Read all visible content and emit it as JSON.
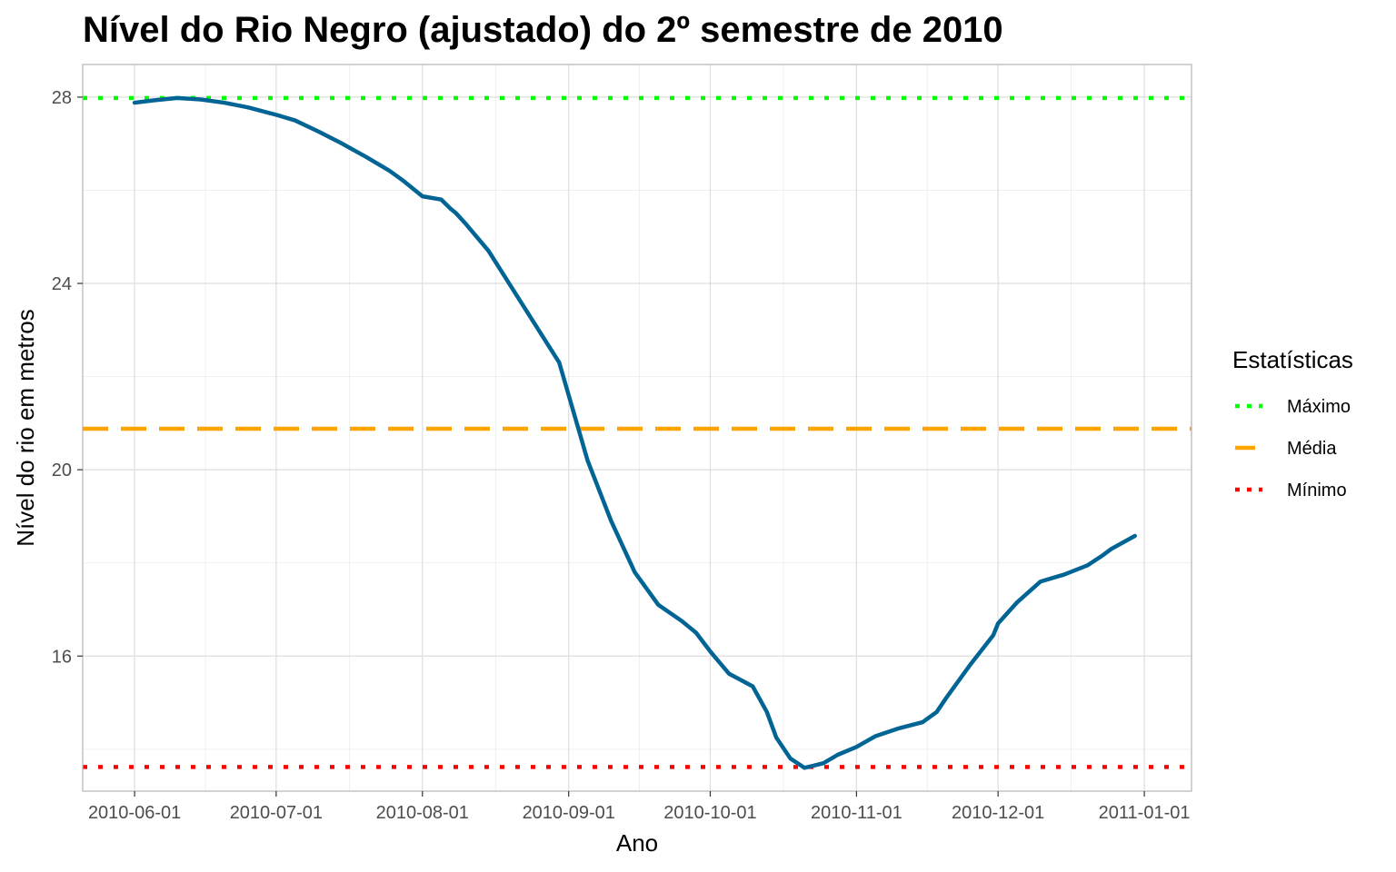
{
  "chart_data": {
    "type": "line",
    "title": "Nível do Rio Negro (ajustado) do 2º semestre de 2010",
    "xlabel": "Ano",
    "ylabel": "Nível do rio em metros",
    "x_tick_labels": [
      "2010-06-01",
      "2010-07-01",
      "2010-08-01",
      "2010-09-01",
      "2010-10-01",
      "2010-11-01",
      "2010-12-01",
      "2011-01-01"
    ],
    "y_ticks": [
      16,
      20,
      24,
      28
    ],
    "xlim": [
      "2010-05-21",
      "2011-01-11"
    ],
    "ylim": [
      13.1,
      28.7
    ],
    "grid": true,
    "series": [
      {
        "color": "#006494",
        "x": [
          "2010-06-01",
          "2010-06-05",
          "2010-06-10",
          "2010-06-15",
          "2010-06-20",
          "2010-06-25",
          "2010-07-01",
          "2010-07-05",
          "2010-07-10",
          "2010-07-15",
          "2010-07-20",
          "2010-07-25",
          "2010-07-28",
          "2010-08-01",
          "2010-08-05",
          "2010-08-07",
          "2010-08-08",
          "2010-08-10",
          "2010-08-15",
          "2010-08-20",
          "2010-08-25",
          "2010-08-30",
          "2010-09-01",
          "2010-09-05",
          "2010-09-10",
          "2010-09-15",
          "2010-09-20",
          "2010-09-25",
          "2010-09-28",
          "2010-10-01",
          "2010-10-05",
          "2010-10-10",
          "2010-10-13",
          "2010-10-15",
          "2010-10-18",
          "2010-10-21",
          "2010-10-23",
          "2010-10-25",
          "2010-10-28",
          "2010-11-01",
          "2010-11-05",
          "2010-11-10",
          "2010-11-15",
          "2010-11-18",
          "2010-11-20",
          "2010-11-25",
          "2010-11-30",
          "2010-12-01",
          "2010-12-05",
          "2010-12-10",
          "2010-12-15",
          "2010-12-20",
          "2010-12-23",
          "2010-12-25",
          "2010-12-30"
        ],
        "y": [
          27.88,
          27.93,
          27.98,
          27.95,
          27.88,
          27.78,
          27.62,
          27.5,
          27.26,
          27.0,
          26.72,
          26.42,
          26.2,
          25.87,
          25.8,
          25.6,
          25.52,
          25.3,
          24.7,
          23.9,
          23.1,
          22.3,
          21.6,
          20.2,
          18.9,
          17.8,
          17.1,
          16.75,
          16.5,
          16.1,
          15.62,
          15.35,
          14.8,
          14.25,
          13.8,
          13.6,
          13.65,
          13.7,
          13.88,
          14.05,
          14.28,
          14.45,
          14.58,
          14.8,
          15.1,
          15.8,
          16.45,
          16.7,
          17.15,
          17.6,
          17.75,
          17.95,
          18.15,
          18.3,
          18.58
        ]
      }
    ],
    "reference_lines": [
      {
        "name": "Máximo",
        "value": 27.98,
        "color": "#00ff00",
        "style": "dotted"
      },
      {
        "name": "Média",
        "value": 20.88,
        "color": "#ffa500",
        "style": "dashed"
      },
      {
        "name": "Mínimo",
        "value": 13.62,
        "color": "#ff0000",
        "style": "dotted"
      }
    ],
    "legend": {
      "title": "Estatísticas",
      "placement": "right",
      "entries": [
        "Máximo",
        "Média",
        "Mínimo"
      ]
    }
  }
}
